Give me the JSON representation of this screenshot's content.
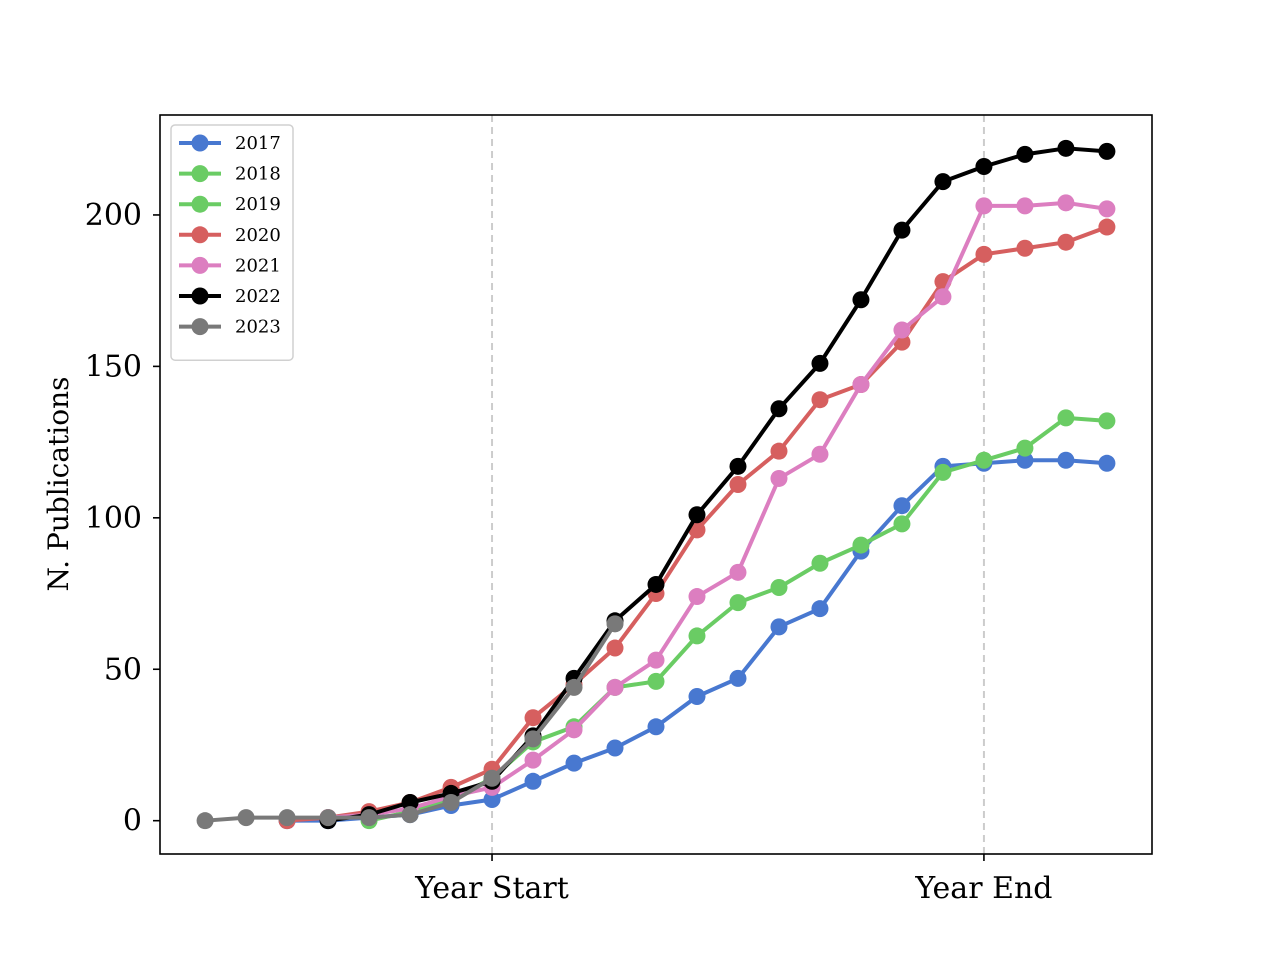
{
  "chart_data": {
    "type": "line",
    "title": "",
    "xlabel": "",
    "ylabel": "N. Publications",
    "x": [
      -7,
      -6,
      -5,
      -4,
      -3,
      -2,
      -1,
      0,
      1,
      2,
      3,
      4,
      5,
      6,
      7,
      8,
      9,
      10,
      11,
      12,
      13,
      14,
      15
    ],
    "xlim": [
      -8.1,
      16.1
    ],
    "xticks": [
      {
        "x": 0,
        "label": "Year Start"
      },
      {
        "x": 12,
        "label": "Year End"
      }
    ],
    "ylim": [
      -11,
      233
    ],
    "yticks": [
      0,
      50,
      100,
      150,
      200
    ],
    "vlines": [
      0,
      12
    ],
    "grid": false,
    "legend_position": "top-left",
    "series": [
      {
        "name": "2017",
        "color": "#4878d0",
        "values": [
          null,
          null,
          0,
          0,
          1,
          2,
          5,
          7,
          13,
          19,
          24,
          31,
          41,
          47,
          64,
          70,
          89,
          104,
          117,
          118,
          119,
          119,
          118
        ]
      },
      {
        "name": "2018",
        "color": "#6acc64",
        "values": [
          null,
          null,
          null,
          null,
          null,
          null,
          null,
          null,
          null,
          null,
          null,
          null,
          null,
          null,
          null,
          null,
          null,
          null,
          null,
          null,
          null,
          null,
          null
        ]
      },
      {
        "name": "2019",
        "color": "#6acc64",
        "values": [
          null,
          null,
          null,
          null,
          0,
          3,
          7,
          14,
          26,
          31,
          44,
          46,
          61,
          72,
          77,
          85,
          91,
          98,
          115,
          119,
          123,
          133,
          132
        ]
      },
      {
        "name": "2020",
        "color": "#d65f5f",
        "values": [
          null,
          null,
          0,
          1,
          3,
          6,
          11,
          17,
          34,
          45,
          57,
          75,
          96,
          111,
          122,
          139,
          144,
          158,
          178,
          187,
          189,
          191,
          196
        ]
      },
      {
        "name": "2021",
        "color": "#dc7ec0",
        "values": [
          null,
          null,
          null,
          1,
          2,
          4,
          8,
          11,
          20,
          30,
          44,
          53,
          74,
          82,
          113,
          121,
          144,
          162,
          173,
          203,
          203,
          204,
          202
        ]
      },
      {
        "name": "2022",
        "color": "#000000",
        "values": [
          null,
          null,
          null,
          0,
          2,
          6,
          9,
          13,
          28,
          47,
          66,
          78,
          101,
          117,
          136,
          151,
          172,
          195,
          211,
          216,
          220,
          222,
          221
        ]
      },
      {
        "name": "2023",
        "color": "#797979",
        "values": [
          0,
          1,
          1,
          1,
          1,
          2,
          6,
          14,
          27,
          44,
          65,
          null,
          null,
          null,
          null,
          null,
          null,
          null,
          null,
          null,
          null,
          null,
          null
        ]
      }
    ]
  }
}
